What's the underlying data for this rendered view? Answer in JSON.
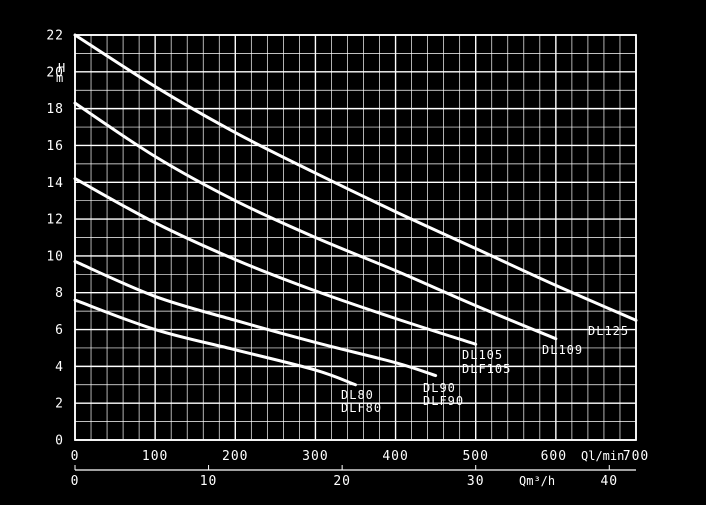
{
  "chart_data": {
    "type": "line",
    "title": "",
    "ylabel": "H m",
    "y_axis": {
      "label_top": "H",
      "label_bottom": "m",
      "range": [
        0,
        22
      ],
      "ticks": [
        0,
        2,
        4,
        6,
        8,
        10,
        12,
        14,
        16,
        18,
        20,
        22
      ]
    },
    "x_axis_lmin": {
      "label": "Ql/min",
      "range": [
        0,
        700
      ],
      "ticks": [
        0,
        100,
        200,
        300,
        400,
        500,
        600,
        700
      ]
    },
    "x_axis_m3h": {
      "label": "Qm³/h",
      "ticks": [
        0,
        10,
        20,
        30,
        40
      ]
    },
    "grid": true,
    "series": [
      {
        "name": "DL125",
        "labels": [
          "DL125"
        ],
        "x": [
          0,
          100,
          200,
          300,
          400,
          500,
          600,
          700
        ],
        "y": [
          22.0,
          19.2,
          16.7,
          14.5,
          12.4,
          10.4,
          8.4,
          6.5
        ]
      },
      {
        "name": "DL109",
        "labels": [
          "DL109"
        ],
        "x": [
          0,
          100,
          200,
          300,
          400,
          500,
          600
        ],
        "y": [
          18.3,
          15.4,
          13.0,
          11.0,
          9.2,
          7.3,
          5.5
        ]
      },
      {
        "name": "DL105 / DLF105",
        "labels": [
          "DL105",
          "DLF105"
        ],
        "x": [
          0,
          100,
          200,
          300,
          400,
          500
        ],
        "y": [
          14.2,
          11.8,
          9.8,
          8.1,
          6.6,
          5.2
        ]
      },
      {
        "name": "DL90 / DLF90",
        "labels": [
          "DL90",
          "DLF90"
        ],
        "x": [
          0,
          100,
          200,
          300,
          400,
          450
        ],
        "y": [
          9.7,
          7.8,
          6.5,
          5.3,
          4.2,
          3.5
        ]
      },
      {
        "name": "DL80 / DLF80",
        "labels": [
          "DL80",
          "DLF80"
        ],
        "x": [
          0,
          100,
          200,
          300,
          350
        ],
        "y": [
          7.6,
          6.0,
          4.9,
          3.8,
          3.0
        ]
      }
    ]
  }
}
